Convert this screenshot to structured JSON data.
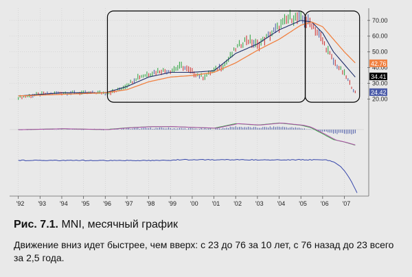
{
  "figure": {
    "label": "Рис. 7.1.",
    "title": "MNI, месячный график",
    "description": "Движение вниз идет быстрее, чем вверх: с 23 до 76 за 10 лет, с 76 назад до 23 всего за 2,5 года."
  },
  "chart_data": {
    "type": "line",
    "instrument": "MNI",
    "timeframe": "monthly",
    "x_tick_labels": [
      "'92",
      "'93",
      "'94",
      "'95",
      "'96",
      "'97",
      "'98",
      "'99",
      "'00",
      "'01",
      "'02",
      "'03",
      "'04",
      "'05",
      "'06",
      "'07"
    ],
    "y_tick_labels": [
      "70.00",
      "60.00",
      "50.00",
      "40.00",
      "30.00",
      "20.00"
    ],
    "ylim": [
      15,
      76
    ],
    "price_tags": [
      {
        "value": 42.76,
        "label": "42.76",
        "color": "#f08040"
      },
      {
        "value": 34.41,
        "label": "34.41",
        "color": "#000000"
      },
      {
        "value": 24.42,
        "label": "24.42",
        "color": "#4a5aa8"
      }
    ],
    "series": [
      {
        "role": "price",
        "style": "bars",
        "x": [
          1992,
          1993,
          1994,
          1995,
          1996,
          1996.5,
          1997,
          1997.5,
          1998,
          1998.5,
          1999,
          1999.5,
          2000,
          2000.5,
          2001,
          2001.5,
          2002,
          2002.5,
          2003,
          2003.5,
          2004,
          2004.5,
          2005,
          2005.5,
          2006,
          2006.5,
          2007,
          2007.5
        ],
        "y": [
          21,
          23,
          24,
          24,
          24,
          25,
          29,
          34,
          36,
          38,
          38,
          41,
          37,
          34,
          38,
          42,
          52,
          58,
          54,
          60,
          66,
          72,
          71,
          68,
          57,
          44,
          36,
          24
        ]
      },
      {
        "role": "fast-moving-average",
        "color": "#1a2a66",
        "x": [
          1992,
          1993,
          1994,
          1995,
          1996,
          1997,
          1998,
          1999,
          2000,
          2001,
          2002,
          2003,
          2004,
          2005,
          2005.5,
          2006,
          2006.5,
          2007,
          2007.5
        ],
        "y": [
          22,
          23,
          24,
          24,
          24,
          28,
          34,
          37,
          37,
          38,
          49,
          55,
          64,
          70,
          69,
          62,
          50,
          42,
          34
        ]
      },
      {
        "role": "slow-moving-average",
        "color": "#f08040",
        "x": [
          1992,
          1993,
          1994,
          1995,
          1996,
          1997,
          1998,
          1999,
          2000,
          2001,
          2002,
          2003,
          2004,
          2005,
          2005.5,
          2006,
          2006.5,
          2007,
          2007.5
        ],
        "y": [
          22,
          22.5,
          23,
          23.5,
          24,
          26,
          31,
          34,
          35,
          37,
          43,
          51,
          58,
          67,
          69,
          66,
          58,
          50,
          43
        ]
      }
    ],
    "highlights": [
      {
        "name": "uptrend",
        "x_range": [
          1996.1,
          2005.2
        ],
        "y_range": [
          18,
          76
        ]
      },
      {
        "name": "downtrend",
        "x_range": [
          2005.2,
          2007.7
        ],
        "y_range": [
          18,
          76
        ]
      }
    ]
  },
  "colors": {
    "background": "#e9e9e9",
    "grid": "#c4c4c4",
    "bar_up": "#3aa84a",
    "bar_down": "#d03a3a",
    "bar_neutral": "#5566aa",
    "histogram": "#4a5aa8",
    "osc_fast": "#3aa84a",
    "osc_slow": "#b04aa8",
    "bottom_line": "#3344aa",
    "axis_text": "#222222"
  }
}
